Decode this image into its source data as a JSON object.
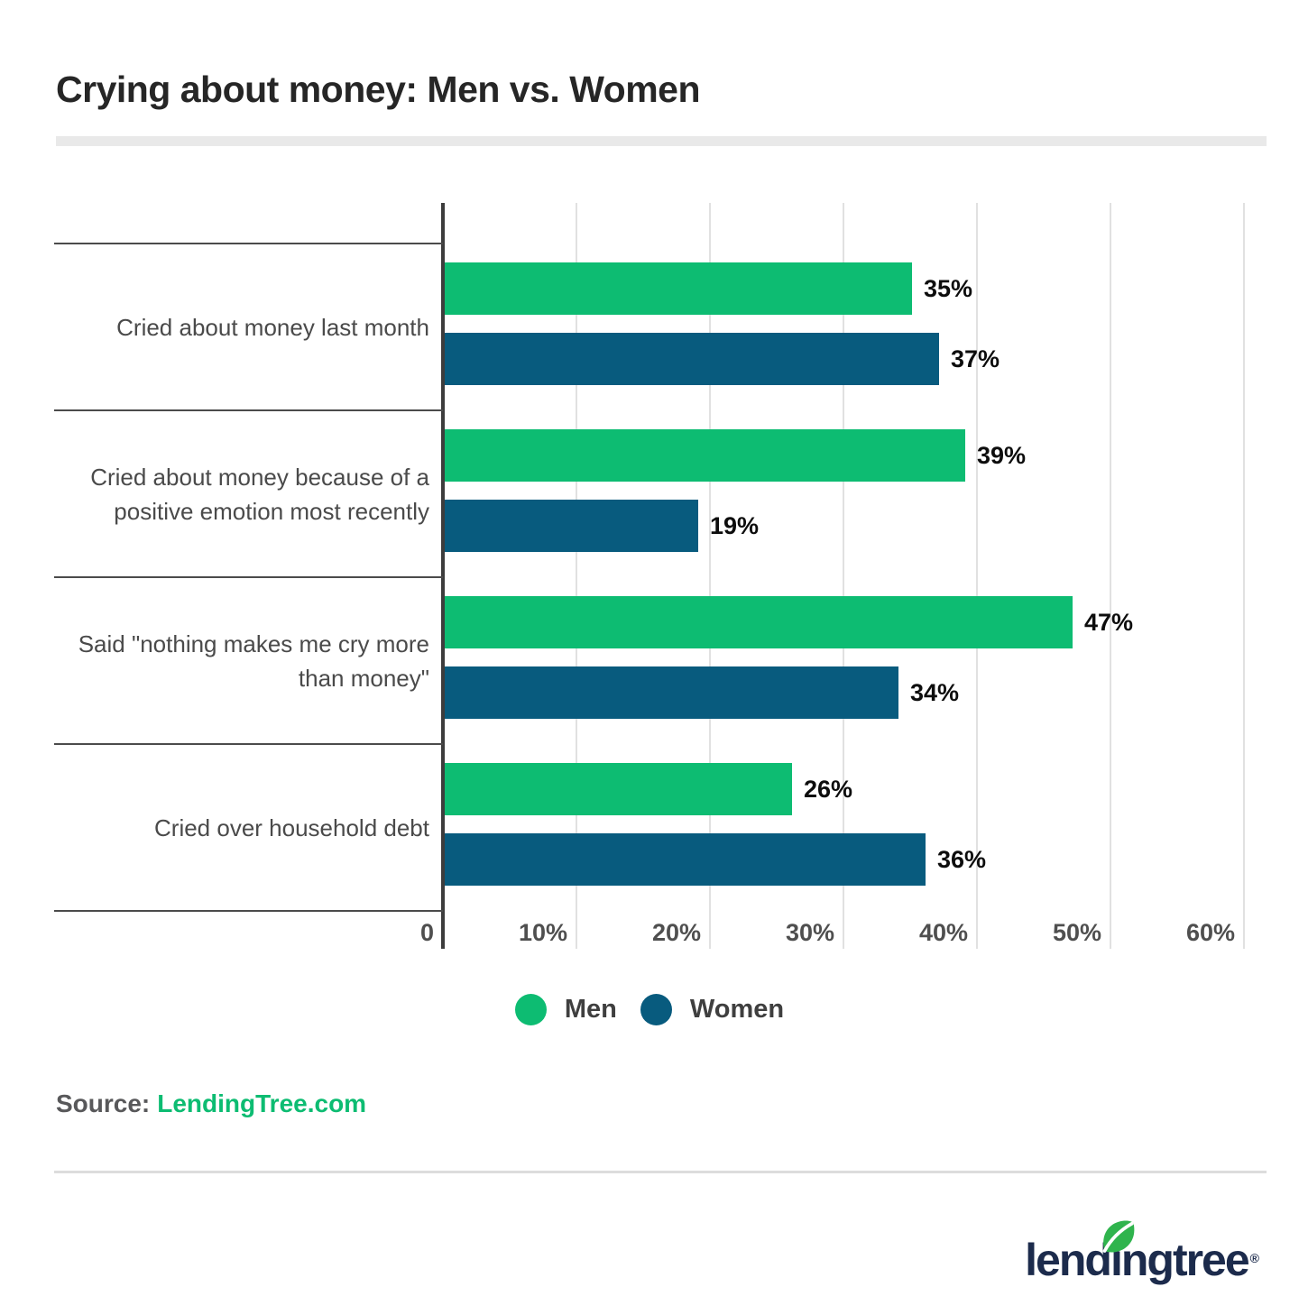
{
  "title": "Crying about money: Men vs. Women",
  "chart_data": {
    "type": "bar",
    "orientation": "horizontal",
    "title": "Crying about money: Men vs. Women",
    "categories": [
      "Cried about money last month",
      "Cried about money because of a positive emotion most recently",
      "Said \"nothing makes me cry more than money\"",
      "Cried over household debt"
    ],
    "series": [
      {
        "name": "Men",
        "color": "#0dbc72",
        "values": [
          35,
          39,
          47,
          26
        ]
      },
      {
        "name": "Women",
        "color": "#085b7e",
        "values": [
          37,
          19,
          34,
          36
        ]
      }
    ],
    "value_suffix": "%",
    "x_ticks": [
      "0",
      "10%",
      "20%",
      "30%",
      "40%",
      "50%",
      "60%"
    ],
    "xlim": [
      0,
      60
    ],
    "grid": true,
    "legend_position": "bottom"
  },
  "legend": [
    {
      "label": "Men",
      "color": "#0dbc72"
    },
    {
      "label": "Women",
      "color": "#085b7e"
    }
  ],
  "source": {
    "prefix": "Source:",
    "link_text": "LendingTree.com"
  },
  "logo": {
    "text": "lendingtree",
    "registered": "®"
  },
  "colors": {
    "men": "#0dbc72",
    "women": "#085b7e",
    "axis": "#3d3d3d",
    "grid": "#e1e1e1",
    "separator": "#4b4b4b",
    "title_underline": "#e9e9e9",
    "value_label": "#0d0d0d",
    "tick_label": "#4f4f4f",
    "category_label": "#4a4a4a",
    "legend_label": "#3f3f3f",
    "source_text": "#58585a",
    "source_link": "#0dbc72",
    "logo_navy": "#1c2b4c",
    "logo_leaf": "#2fb44d",
    "footer_divider": "#dcdcdc"
  }
}
